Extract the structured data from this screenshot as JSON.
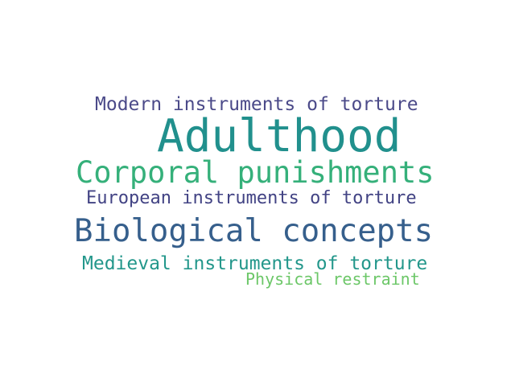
{
  "word_cloud": {
    "words": [
      {
        "id": "w-modern",
        "text": "Modern instruments of torture",
        "color": "#4b4a89"
      },
      {
        "id": "w-adult",
        "text": "Adulthood",
        "color": "#21908d"
      },
      {
        "id": "w-corporal",
        "text": "Corporal punishments",
        "color": "#35b07a"
      },
      {
        "id": "w-european",
        "text": "European instruments of torture",
        "color": "#424384"
      },
      {
        "id": "w-bio",
        "text": "Biological concepts",
        "color": "#365f8c"
      },
      {
        "id": "w-medieval",
        "text": "Medieval instruments of torture",
        "color": "#23978b"
      },
      {
        "id": "w-physical",
        "text": "Physical restraint",
        "color": "#6cc768"
      }
    ]
  }
}
